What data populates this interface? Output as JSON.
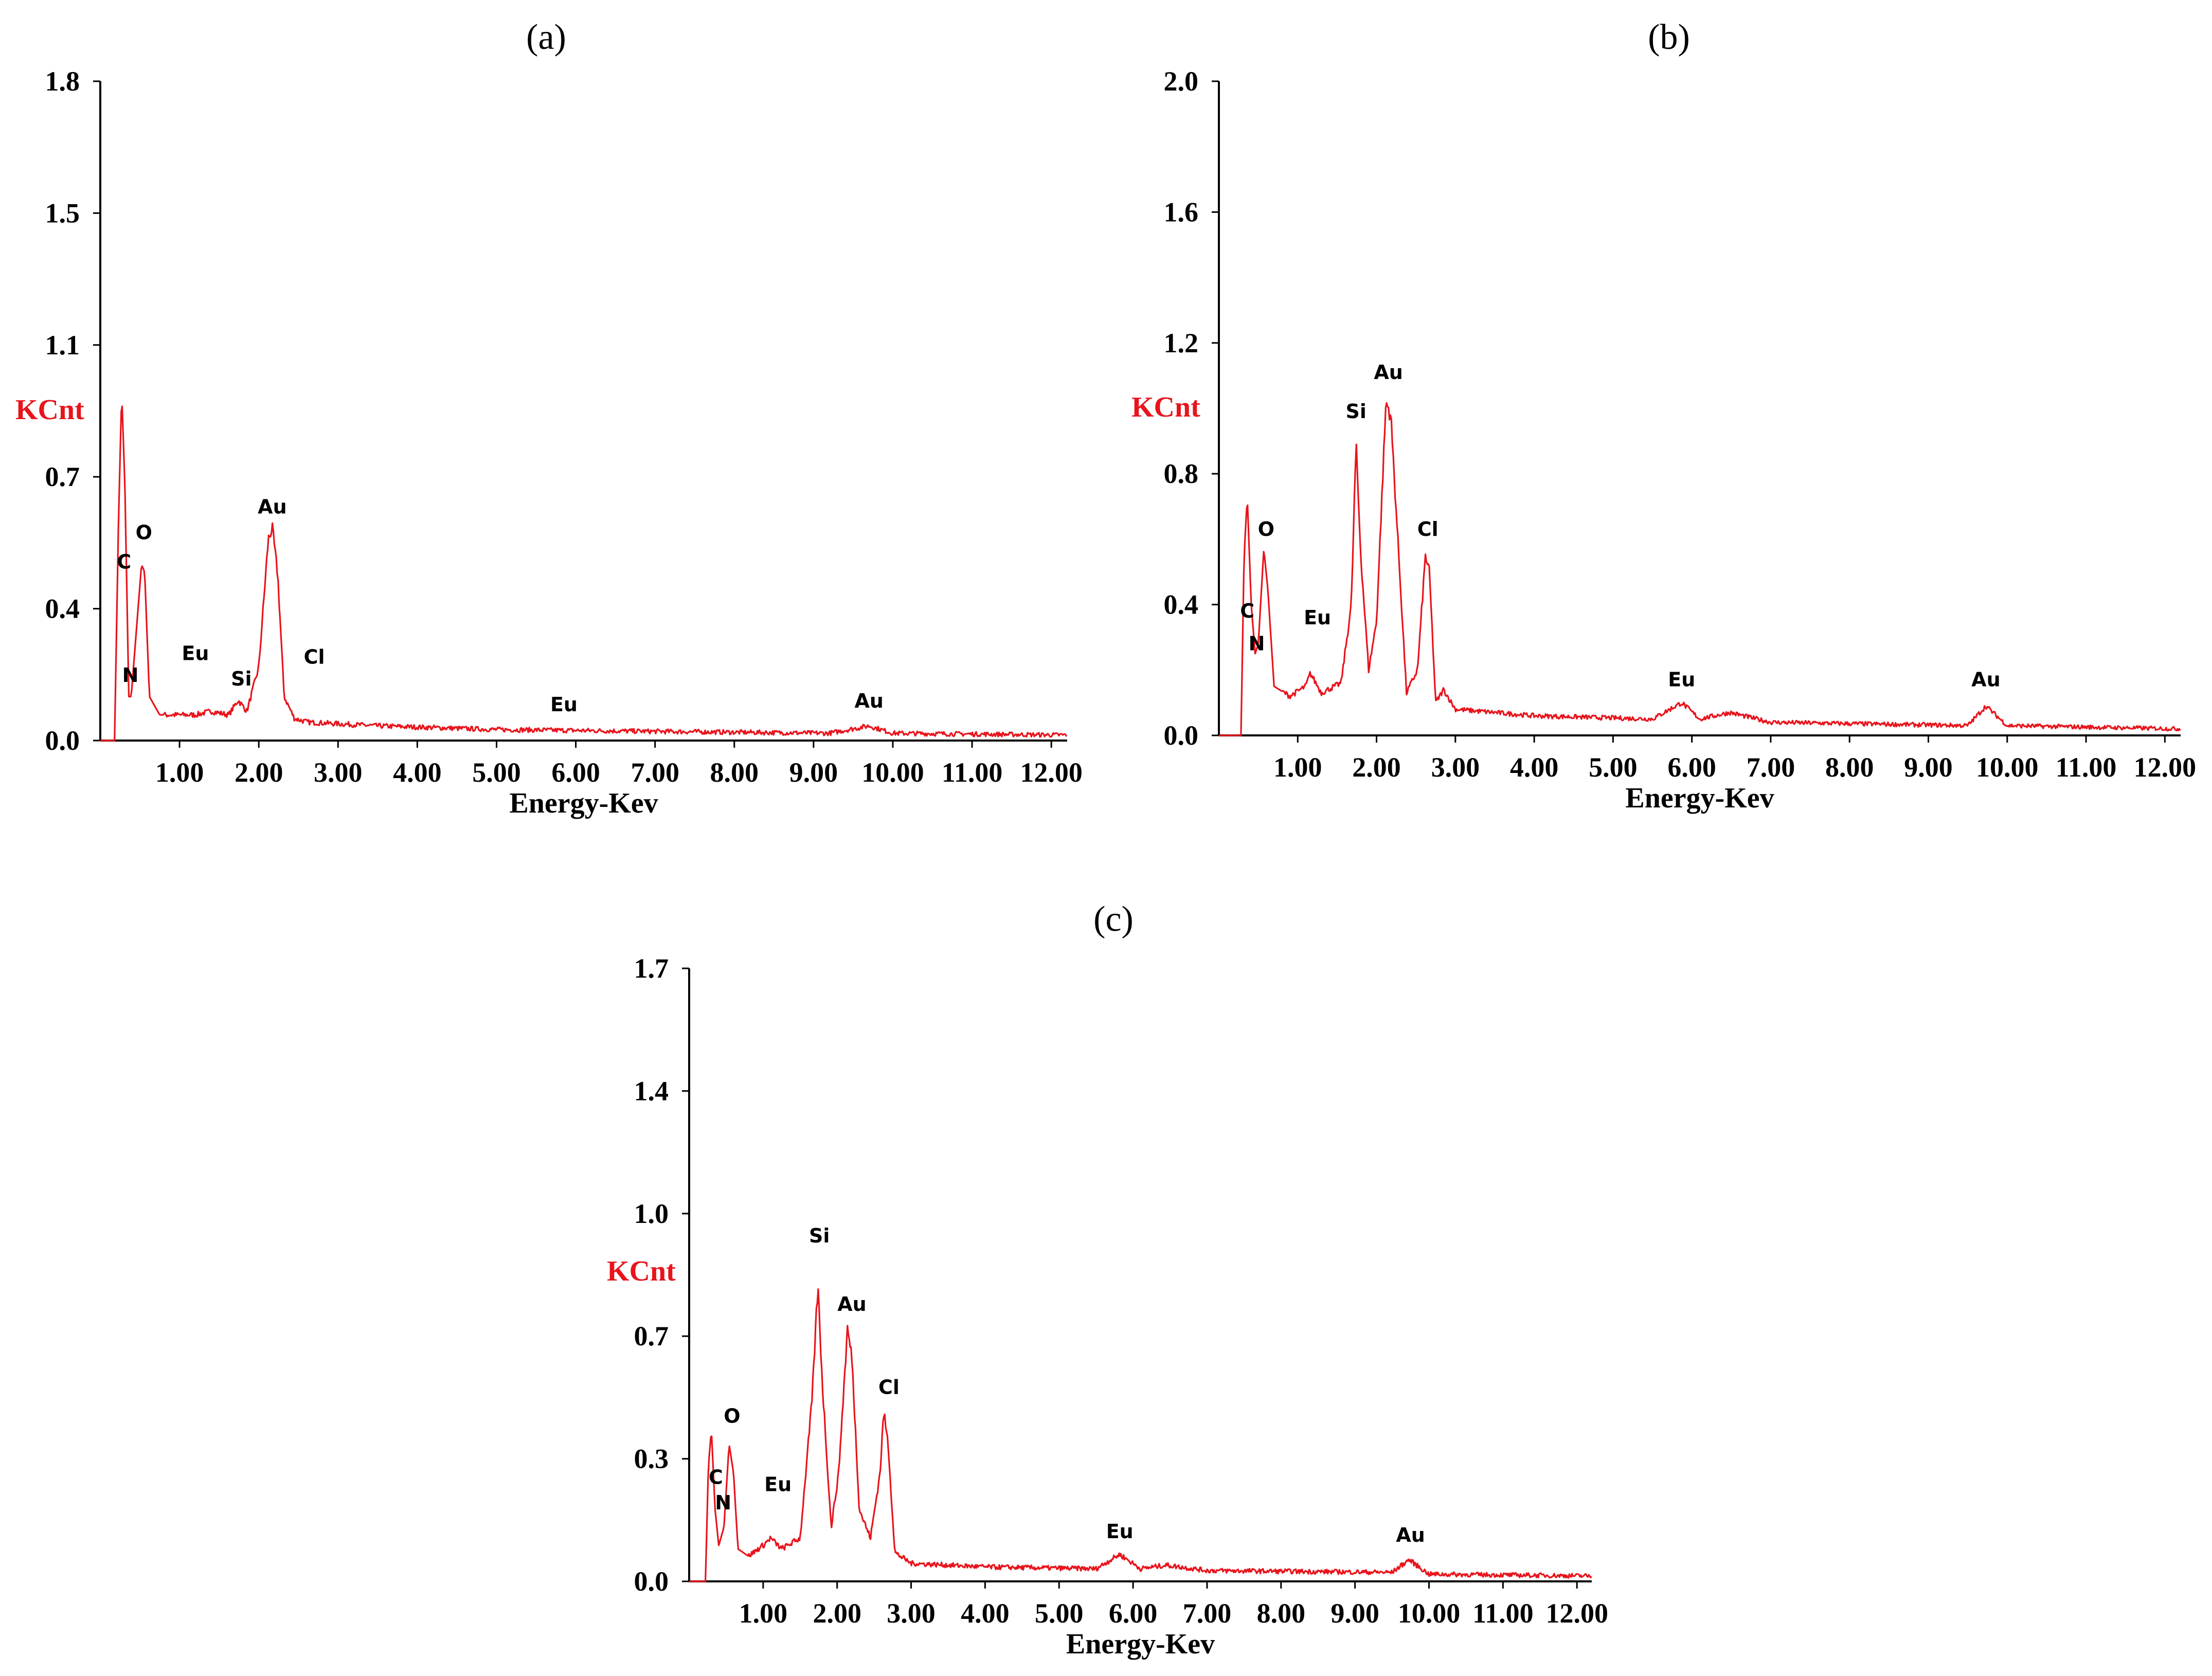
{
  "figure": {
    "colors": {
      "spectrum": "#e8141c",
      "ylabel": "#e8141c",
      "axis": "#000000"
    }
  },
  "chart_data": [
    {
      "id": "a",
      "type": "line",
      "panel_label": "(a)",
      "ylabel": "KCnt",
      "xlabel": "Energy-Kev",
      "ylim": [
        0,
        1.8
      ],
      "xlim": [
        0,
        12.2
      ],
      "y_ticks": [
        "0.0",
        "0.4",
        "0.7",
        "1.1",
        "1.5",
        "1.8"
      ],
      "x_ticks": [
        "1.00",
        "2.00",
        "3.00",
        "4.00",
        "5.00",
        "6.00",
        "7.00",
        "8.00",
        "9.00",
        "10.00",
        "11.00",
        "12.00"
      ],
      "peaks": [
        {
          "x": 0.18,
          "y": 0.0
        },
        {
          "x": 0.23,
          "y": 0.6
        },
        {
          "x": 0.27,
          "y": 0.95
        },
        {
          "x": 0.31,
          "y": 0.7
        },
        {
          "x": 0.36,
          "y": 0.12
        },
        {
          "x": 0.39,
          "y": 0.12
        },
        {
          "x": 0.52,
          "y": 0.48
        },
        {
          "x": 0.56,
          "y": 0.46
        },
        {
          "x": 0.62,
          "y": 0.12
        },
        {
          "x": 0.75,
          "y": 0.07
        },
        {
          "x": 1.2,
          "y": 0.07
        },
        {
          "x": 1.4,
          "y": 0.08
        },
        {
          "x": 1.62,
          "y": 0.07
        },
        {
          "x": 1.74,
          "y": 0.11
        },
        {
          "x": 1.85,
          "y": 0.08
        },
        {
          "x": 2.0,
          "y": 0.2
        },
        {
          "x": 2.12,
          "y": 0.55
        },
        {
          "x": 2.17,
          "y": 0.58
        },
        {
          "x": 2.24,
          "y": 0.45
        },
        {
          "x": 2.32,
          "y": 0.12
        },
        {
          "x": 2.45,
          "y": 0.06
        },
        {
          "x": 2.62,
          "y": 0.05
        },
        {
          "x": 3.5,
          "y": 0.04
        },
        {
          "x": 5.0,
          "y": 0.03
        },
        {
          "x": 7.0,
          "y": 0.025
        },
        {
          "x": 9.2,
          "y": 0.02
        },
        {
          "x": 9.7,
          "y": 0.04
        },
        {
          "x": 10.0,
          "y": 0.02
        },
        {
          "x": 12.2,
          "y": 0.015
        }
      ],
      "annotations": [
        {
          "text": "C",
          "x": 0.3,
          "y": 0.47
        },
        {
          "text": "O",
          "x": 0.55,
          "y": 0.55
        },
        {
          "text": "N",
          "x": 0.38,
          "y": 0.16
        },
        {
          "text": "Eu",
          "x": 1.2,
          "y": 0.22
        },
        {
          "text": "Si",
          "x": 1.78,
          "y": 0.15
        },
        {
          "text": "Au",
          "x": 2.17,
          "y": 0.62
        },
        {
          "text": "Cl",
          "x": 2.7,
          "y": 0.21
        },
        {
          "text": "Eu",
          "x": 5.85,
          "y": 0.08
        },
        {
          "text": "Au",
          "x": 9.7,
          "y": 0.09
        }
      ]
    },
    {
      "id": "b",
      "type": "line",
      "panel_label": "(b)",
      "ylabel": "KCnt",
      "xlabel": "Energy-Kev",
      "ylim": [
        0,
        2.0
      ],
      "xlim": [
        0,
        12.2
      ],
      "y_ticks": [
        "0.0",
        "0.4",
        "0.8",
        "1.2",
        "1.6",
        "2.0"
      ],
      "x_ticks": [
        "1.00",
        "2.00",
        "3.00",
        "4.00",
        "5.00",
        "6.00",
        "7.00",
        "8.00",
        "9.00",
        "10.00",
        "11.00",
        "12.00"
      ],
      "peaks": [
        {
          "x": 0.28,
          "y": 0.0
        },
        {
          "x": 0.32,
          "y": 0.55
        },
        {
          "x": 0.36,
          "y": 0.73
        },
        {
          "x": 0.41,
          "y": 0.4
        },
        {
          "x": 0.46,
          "y": 0.25
        },
        {
          "x": 0.5,
          "y": 0.28
        },
        {
          "x": 0.57,
          "y": 0.57
        },
        {
          "x": 0.62,
          "y": 0.45
        },
        {
          "x": 0.7,
          "y": 0.15
        },
        {
          "x": 0.9,
          "y": 0.12
        },
        {
          "x": 1.1,
          "y": 0.15
        },
        {
          "x": 1.16,
          "y": 0.19
        },
        {
          "x": 1.3,
          "y": 0.13
        },
        {
          "x": 1.55,
          "y": 0.16
        },
        {
          "x": 1.68,
          "y": 0.4
        },
        {
          "x": 1.74,
          "y": 0.89
        },
        {
          "x": 1.8,
          "y": 0.55
        },
        {
          "x": 1.9,
          "y": 0.2
        },
        {
          "x": 2.0,
          "y": 0.35
        },
        {
          "x": 2.12,
          "y": 1.02
        },
        {
          "x": 2.18,
          "y": 0.98
        },
        {
          "x": 2.27,
          "y": 0.6
        },
        {
          "x": 2.38,
          "y": 0.13
        },
        {
          "x": 2.52,
          "y": 0.2
        },
        {
          "x": 2.62,
          "y": 0.55
        },
        {
          "x": 2.67,
          "y": 0.5
        },
        {
          "x": 2.75,
          "y": 0.1
        },
        {
          "x": 2.85,
          "y": 0.14
        },
        {
          "x": 3.0,
          "y": 0.08
        },
        {
          "x": 4.0,
          "y": 0.06
        },
        {
          "x": 5.5,
          "y": 0.05
        },
        {
          "x": 5.87,
          "y": 0.1
        },
        {
          "x": 6.1,
          "y": 0.05
        },
        {
          "x": 6.48,
          "y": 0.07
        },
        {
          "x": 7.0,
          "y": 0.04
        },
        {
          "x": 9.5,
          "y": 0.03
        },
        {
          "x": 9.73,
          "y": 0.09
        },
        {
          "x": 10.0,
          "y": 0.03
        },
        {
          "x": 12.2,
          "y": 0.02
        }
      ],
      "annotations": [
        {
          "text": "C",
          "x": 0.36,
          "y": 0.36
        },
        {
          "text": "N",
          "x": 0.48,
          "y": 0.26
        },
        {
          "text": "O",
          "x": 0.6,
          "y": 0.61
        },
        {
          "text": "Eu",
          "x": 1.25,
          "y": 0.34
        },
        {
          "text": "Si",
          "x": 1.74,
          "y": 0.97
        },
        {
          "text": "Au",
          "x": 2.15,
          "y": 1.09
        },
        {
          "text": "Cl",
          "x": 2.65,
          "y": 0.61
        },
        {
          "text": "Eu",
          "x": 5.87,
          "y": 0.15
        },
        {
          "text": "Au",
          "x": 9.73,
          "y": 0.15
        }
      ]
    },
    {
      "id": "c",
      "type": "line",
      "panel_label": "(c)",
      "ylabel": "KCnt",
      "xlabel": "Energy-Kev",
      "ylim": [
        0,
        1.7
      ],
      "xlim": [
        0,
        12.2
      ],
      "y_ticks": [
        "0.0",
        "0.3",
        "0.7",
        "1.0",
        "1.4",
        "1.7"
      ],
      "x_ticks": [
        "1.00",
        "2.00",
        "3.00",
        "4.00",
        "5.00",
        "6.00",
        "7.00",
        "8.00",
        "9.00",
        "10.00",
        "11.00",
        "12.00"
      ],
      "peaks": [
        {
          "x": 0.22,
          "y": 0.0
        },
        {
          "x": 0.26,
          "y": 0.32
        },
        {
          "x": 0.3,
          "y": 0.42
        },
        {
          "x": 0.35,
          "y": 0.2
        },
        {
          "x": 0.4,
          "y": 0.1
        },
        {
          "x": 0.47,
          "y": 0.15
        },
        {
          "x": 0.54,
          "y": 0.38
        },
        {
          "x": 0.6,
          "y": 0.3
        },
        {
          "x": 0.66,
          "y": 0.09
        },
        {
          "x": 0.8,
          "y": 0.07
        },
        {
          "x": 1.0,
          "y": 0.1
        },
        {
          "x": 1.1,
          "y": 0.12
        },
        {
          "x": 1.25,
          "y": 0.09
        },
        {
          "x": 1.5,
          "y": 0.12
        },
        {
          "x": 1.66,
          "y": 0.5
        },
        {
          "x": 1.74,
          "y": 0.82
        },
        {
          "x": 1.8,
          "y": 0.55
        },
        {
          "x": 1.92,
          "y": 0.15
        },
        {
          "x": 2.02,
          "y": 0.3
        },
        {
          "x": 2.14,
          "y": 0.7
        },
        {
          "x": 2.2,
          "y": 0.62
        },
        {
          "x": 2.3,
          "y": 0.2
        },
        {
          "x": 2.45,
          "y": 0.12
        },
        {
          "x": 2.58,
          "y": 0.3
        },
        {
          "x": 2.63,
          "y": 0.47
        },
        {
          "x": 2.69,
          "y": 0.38
        },
        {
          "x": 2.78,
          "y": 0.08
        },
        {
          "x": 3.0,
          "y": 0.05
        },
        {
          "x": 4.0,
          "y": 0.04
        },
        {
          "x": 5.5,
          "y": 0.035
        },
        {
          "x": 5.82,
          "y": 0.075
        },
        {
          "x": 6.1,
          "y": 0.035
        },
        {
          "x": 6.45,
          "y": 0.045
        },
        {
          "x": 7.0,
          "y": 0.03
        },
        {
          "x": 9.5,
          "y": 0.025
        },
        {
          "x": 9.73,
          "y": 0.06
        },
        {
          "x": 10.0,
          "y": 0.02
        },
        {
          "x": 12.2,
          "y": 0.015
        }
      ],
      "annotations": [
        {
          "text": "C",
          "x": 0.36,
          "y": 0.27
        },
        {
          "text": "N",
          "x": 0.46,
          "y": 0.2
        },
        {
          "text": "O",
          "x": 0.58,
          "y": 0.44
        },
        {
          "text": "Eu",
          "x": 1.2,
          "y": 0.25
        },
        {
          "text": "Si",
          "x": 1.76,
          "y": 0.94
        },
        {
          "text": "Au",
          "x": 2.2,
          "y": 0.75
        },
        {
          "text": "Cl",
          "x": 2.7,
          "y": 0.52
        },
        {
          "text": "Eu",
          "x": 5.82,
          "y": 0.12
        },
        {
          "text": "Au",
          "x": 9.75,
          "y": 0.11
        }
      ]
    }
  ]
}
